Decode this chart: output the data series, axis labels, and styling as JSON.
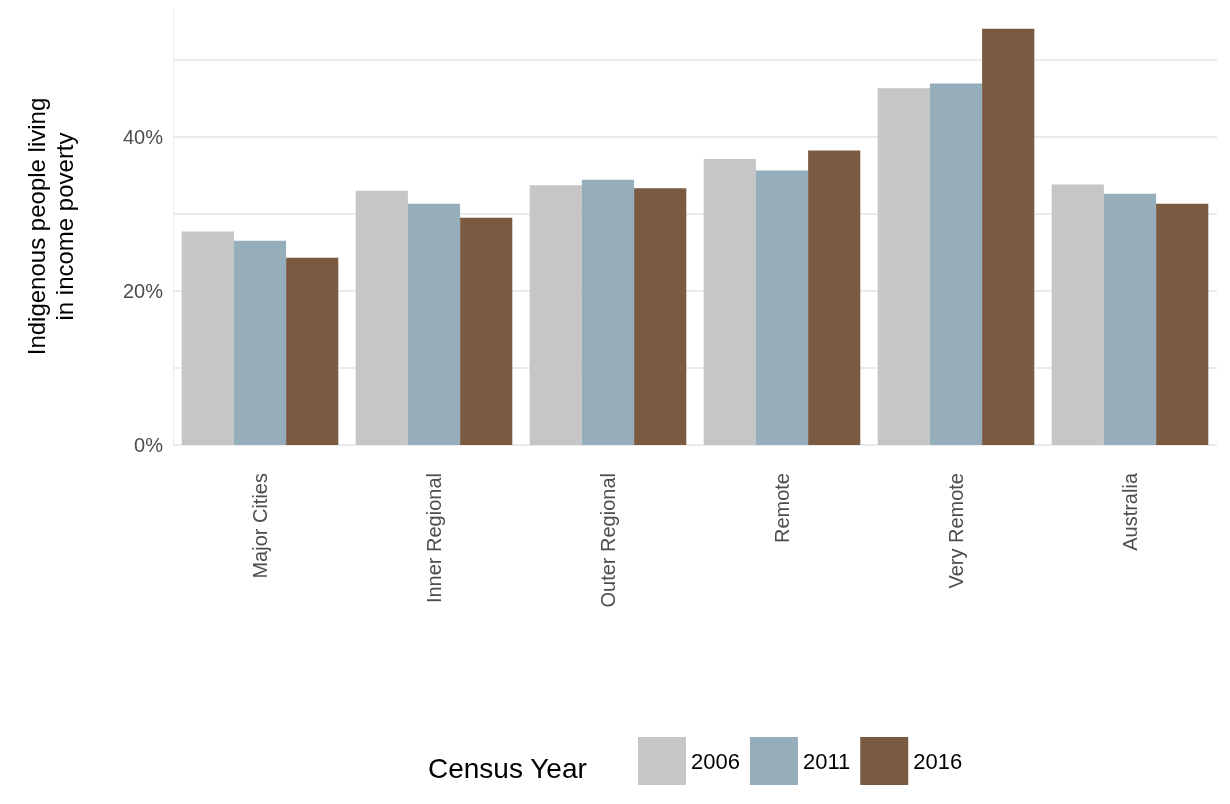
{
  "chart_data": {
    "type": "bar",
    "ylabel": "Indigenous people living\nin income poverty",
    "legend_title": "Census Year",
    "categories": [
      "Major Cities",
      "Inner Regional",
      "Outer Regional",
      "Remote",
      "Very Remote",
      "Australia"
    ],
    "series": [
      {
        "name": "2006",
        "color": "#c6c6c8",
        "values": [
          27.7,
          33.0,
          33.7,
          37.1,
          46.3,
          33.8
        ]
      },
      {
        "name": "2011",
        "color": "#96aebb",
        "values": [
          26.5,
          31.3,
          34.4,
          35.6,
          46.9,
          32.6
        ]
      },
      {
        "name": "2016",
        "color": "#7a5a41",
        "values": [
          24.3,
          29.5,
          33.3,
          38.2,
          54.0,
          31.3
        ]
      }
    ],
    "yticks": [
      {
        "value": 0,
        "label": "0%"
      },
      {
        "value": 10,
        "label": null
      },
      {
        "value": 20,
        "label": "20%"
      },
      {
        "value": 30,
        "label": null
      },
      {
        "value": 40,
        "label": "40%"
      },
      {
        "value": 50,
        "label": null
      }
    ],
    "ylim": [
      0,
      56.7
    ],
    "grid": "y",
    "legend": "bottom"
  }
}
